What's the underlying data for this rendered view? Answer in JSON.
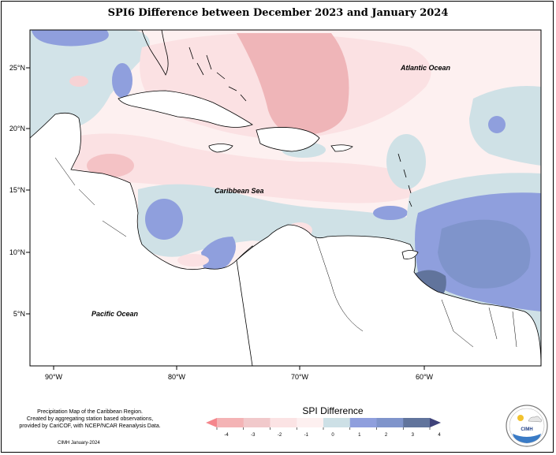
{
  "title": "SPI6 Difference between December 2023 and January 2024",
  "oceans": [
    "Atlantic Ocean",
    "Caribbean Sea",
    "Pacific Ocean"
  ],
  "lat_labels": [
    "25°N",
    "20°N",
    "15°N",
    "10°N",
    "5°N"
  ],
  "lon_labels": [
    "90°W",
    "80°W",
    "70°W",
    "60°W"
  ],
  "credit": [
    "Precipitation Map of the Caribbean Region.",
    "Created by aggregating station based observations,",
    "provided by CariCOF, with NCEP/NCAR Reanalysis Data."
  ],
  "date_line": "CIMH January-2024",
  "colorbar": {
    "title": "SPI Difference",
    "ticks": [
      "-4",
      "-3",
      "-2",
      "-1",
      "0",
      "1",
      "2",
      "3",
      "4"
    ],
    "colors": [
      "#f5868c",
      "#f4b3b5",
      "#f1c9cb",
      "#fbe3e4",
      "#fdf0f0",
      "#cde0e6",
      "#8f9fdd",
      "#7f94cb",
      "#61749c",
      "#3f427a"
    ]
  },
  "logo_text": "CIMH"
}
